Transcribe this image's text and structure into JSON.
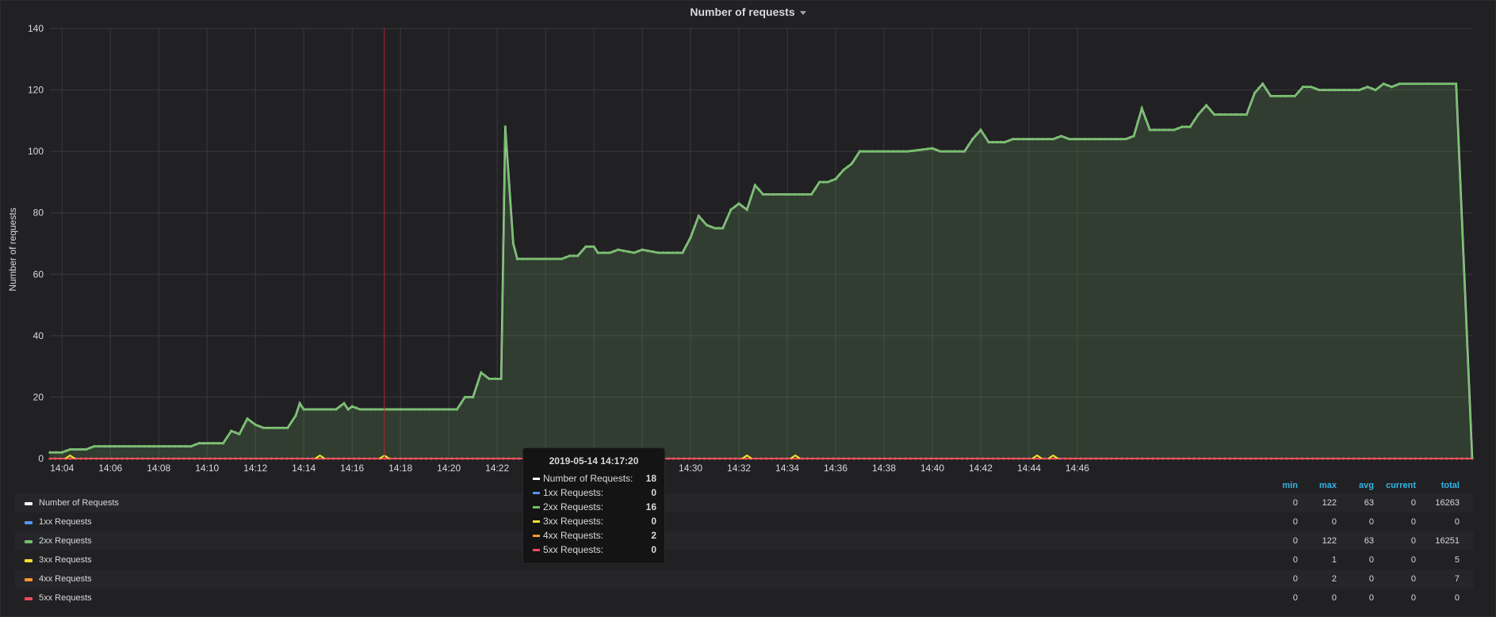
{
  "panel": {
    "title": "Number of requests"
  },
  "chart_data": {
    "type": "area",
    "ylabel": "Number of requests",
    "ylim": [
      0,
      140
    ],
    "yticks": [
      0,
      20,
      40,
      60,
      80,
      100,
      120,
      140
    ],
    "xlim_minutes": [
      14.07,
      14.78
    ],
    "xticks": [
      "14:04",
      "14:06",
      "14:08",
      "14:10",
      "14:12",
      "14:14",
      "14:16",
      "14:18",
      "14:20",
      "14:22",
      "14:24",
      "14:26",
      "14:28",
      "14:30",
      "14:32",
      "14:34",
      "14:36",
      "14:38",
      "14:40",
      "14:42",
      "14:44",
      "14:46"
    ],
    "grid": true,
    "series": [
      {
        "name": "Number of Requests",
        "color": "#ffffff"
      },
      {
        "name": "1xx Requests",
        "color": "#5794f2"
      },
      {
        "name": "2xx Requests",
        "color": "#73bf69"
      },
      {
        "name": "3xx Requests",
        "color": "#fade2a"
      },
      {
        "name": "4xx Requests",
        "color": "#ff9830"
      },
      {
        "name": "5xx Requests",
        "color": "#f2495c"
      }
    ],
    "main_points": [
      [
        "14:03:30",
        2
      ],
      [
        "14:04:00",
        2
      ],
      [
        "14:04:20",
        3
      ],
      [
        "14:05:00",
        3
      ],
      [
        "14:05:20",
        4
      ],
      [
        "14:07:00",
        4
      ],
      [
        "14:08:00",
        4
      ],
      [
        "14:09:20",
        4
      ],
      [
        "14:09:40",
        5
      ],
      [
        "14:10:40",
        5
      ],
      [
        "14:11:00",
        9
      ],
      [
        "14:11:20",
        8
      ],
      [
        "14:11:40",
        13
      ],
      [
        "14:12:00",
        11
      ],
      [
        "14:12:20",
        10
      ],
      [
        "14:13:20",
        10
      ],
      [
        "14:13:40",
        14
      ],
      [
        "14:13:50",
        18
      ],
      [
        "14:14:00",
        16
      ],
      [
        "14:15:20",
        16
      ],
      [
        "14:15:40",
        18
      ],
      [
        "14:15:50",
        16
      ],
      [
        "14:16:00",
        17
      ],
      [
        "14:16:20",
        16
      ],
      [
        "14:18:00",
        16
      ],
      [
        "14:19:00",
        16
      ],
      [
        "14:20:00",
        16
      ],
      [
        "14:20:20",
        16
      ],
      [
        "14:20:40",
        20
      ],
      [
        "14:21:00",
        20
      ],
      [
        "14:21:20",
        28
      ],
      [
        "14:21:40",
        26
      ],
      [
        "14:22:10",
        26
      ],
      [
        "14:22:20",
        108
      ],
      [
        "14:22:40",
        70
      ],
      [
        "14:22:50",
        65
      ],
      [
        "14:23:40",
        65
      ],
      [
        "14:24:00",
        65
      ],
      [
        "14:24:40",
        65
      ],
      [
        "14:25:00",
        66
      ],
      [
        "14:25:20",
        66
      ],
      [
        "14:25:40",
        69
      ],
      [
        "14:26:00",
        69
      ],
      [
        "14:26:10",
        67
      ],
      [
        "14:26:40",
        67
      ],
      [
        "14:27:00",
        68
      ],
      [
        "14:27:40",
        67
      ],
      [
        "14:28:00",
        68
      ],
      [
        "14:28:40",
        67
      ],
      [
        "14:29:40",
        67
      ],
      [
        "14:30:00",
        72
      ],
      [
        "14:30:20",
        79
      ],
      [
        "14:30:40",
        76
      ],
      [
        "14:31:00",
        75
      ],
      [
        "14:31:20",
        75
      ],
      [
        "14:31:40",
        81
      ],
      [
        "14:32:00",
        83
      ],
      [
        "14:32:20",
        81
      ],
      [
        "14:32:40",
        89
      ],
      [
        "14:33:00",
        86
      ],
      [
        "14:34:20",
        86
      ],
      [
        "14:34:40",
        86
      ],
      [
        "14:35:00",
        86
      ],
      [
        "14:35:20",
        90
      ],
      [
        "14:35:40",
        90
      ],
      [
        "14:36:00",
        91
      ],
      [
        "14:36:20",
        94
      ],
      [
        "14:36:40",
        96
      ],
      [
        "14:37:00",
        100
      ],
      [
        "14:37:20",
        100
      ],
      [
        "14:39:00",
        100
      ],
      [
        "14:40:00",
        101
      ],
      [
        "14:40:20",
        100
      ],
      [
        "14:41:20",
        100
      ],
      [
        "14:41:40",
        104
      ],
      [
        "14:42:00",
        107
      ],
      [
        "14:42:20",
        103
      ],
      [
        "14:42:40",
        103
      ],
      [
        "14:43:00",
        103
      ],
      [
        "14:43:20",
        104
      ],
      [
        "14:45:00",
        104
      ],
      [
        "14:45:20",
        105
      ],
      [
        "14:45:40",
        104
      ],
      [
        "14:48:00",
        104
      ],
      [
        "14:48:20",
        105
      ],
      [
        "14:48:40",
        114
      ],
      [
        "14:49:00",
        107
      ],
      [
        "14:50:00",
        107
      ],
      [
        "14:50:20",
        108
      ],
      [
        "14:50:40",
        108
      ],
      [
        "14:51:00",
        112
      ],
      [
        "14:51:20",
        115
      ],
      [
        "14:51:40",
        112
      ],
      [
        "14:53:00",
        112
      ],
      [
        "14:53:20",
        119
      ],
      [
        "14:53:40",
        122
      ],
      [
        "14:54:00",
        118
      ],
      [
        "14:55:00",
        118
      ],
      [
        "14:55:20",
        121
      ],
      [
        "14:55:40",
        121
      ],
      [
        "14:56:00",
        120
      ],
      [
        "14:57:40",
        120
      ],
      [
        "14:58:00",
        121
      ],
      [
        "14:58:20",
        120
      ],
      [
        "14:58:40",
        122
      ],
      [
        "14:59:00",
        121
      ],
      [
        "14:59:20",
        122
      ],
      [
        "14:59:40",
        122
      ],
      [
        "15:01:20",
        122
      ],
      [
        "15:01:40",
        122
      ],
      [
        "15:02:20",
        0
      ]
    ]
  },
  "crosshair": {
    "time": "14:17:20"
  },
  "tooltip": {
    "title": "2019-05-14 14:17:20",
    "rows": [
      {
        "name": "Number of Requests:",
        "value": "18",
        "color": "#ffffff"
      },
      {
        "name": "1xx Requests:",
        "value": "0",
        "color": "#5794f2"
      },
      {
        "name": "2xx Requests:",
        "value": "16",
        "color": "#73bf69"
      },
      {
        "name": "3xx Requests:",
        "value": "0",
        "color": "#fade2a"
      },
      {
        "name": "4xx Requests:",
        "value": "2",
        "color": "#ff9830"
      },
      {
        "name": "5xx Requests:",
        "value": "0",
        "color": "#f2495c"
      }
    ]
  },
  "legend": {
    "columns": [
      "min",
      "max",
      "avg",
      "current",
      "total"
    ],
    "rows": [
      {
        "name": "Number of Requests",
        "color": "#ffffff",
        "values": [
          "0",
          "122",
          "63",
          "0",
          "16263"
        ]
      },
      {
        "name": "1xx Requests",
        "color": "#5794f2",
        "values": [
          "0",
          "0",
          "0",
          "0",
          "0"
        ]
      },
      {
        "name": "2xx Requests",
        "color": "#73bf69",
        "values": [
          "0",
          "122",
          "63",
          "0",
          "16251"
        ]
      },
      {
        "name": "3xx Requests",
        "color": "#fade2a",
        "values": [
          "0",
          "1",
          "0",
          "0",
          "5"
        ]
      },
      {
        "name": "4xx Requests",
        "color": "#ff9830",
        "values": [
          "0",
          "2",
          "0",
          "0",
          "7"
        ]
      },
      {
        "name": "5xx Requests",
        "color": "#f2495c",
        "values": [
          "0",
          "0",
          "0",
          "0",
          "0"
        ]
      }
    ]
  }
}
